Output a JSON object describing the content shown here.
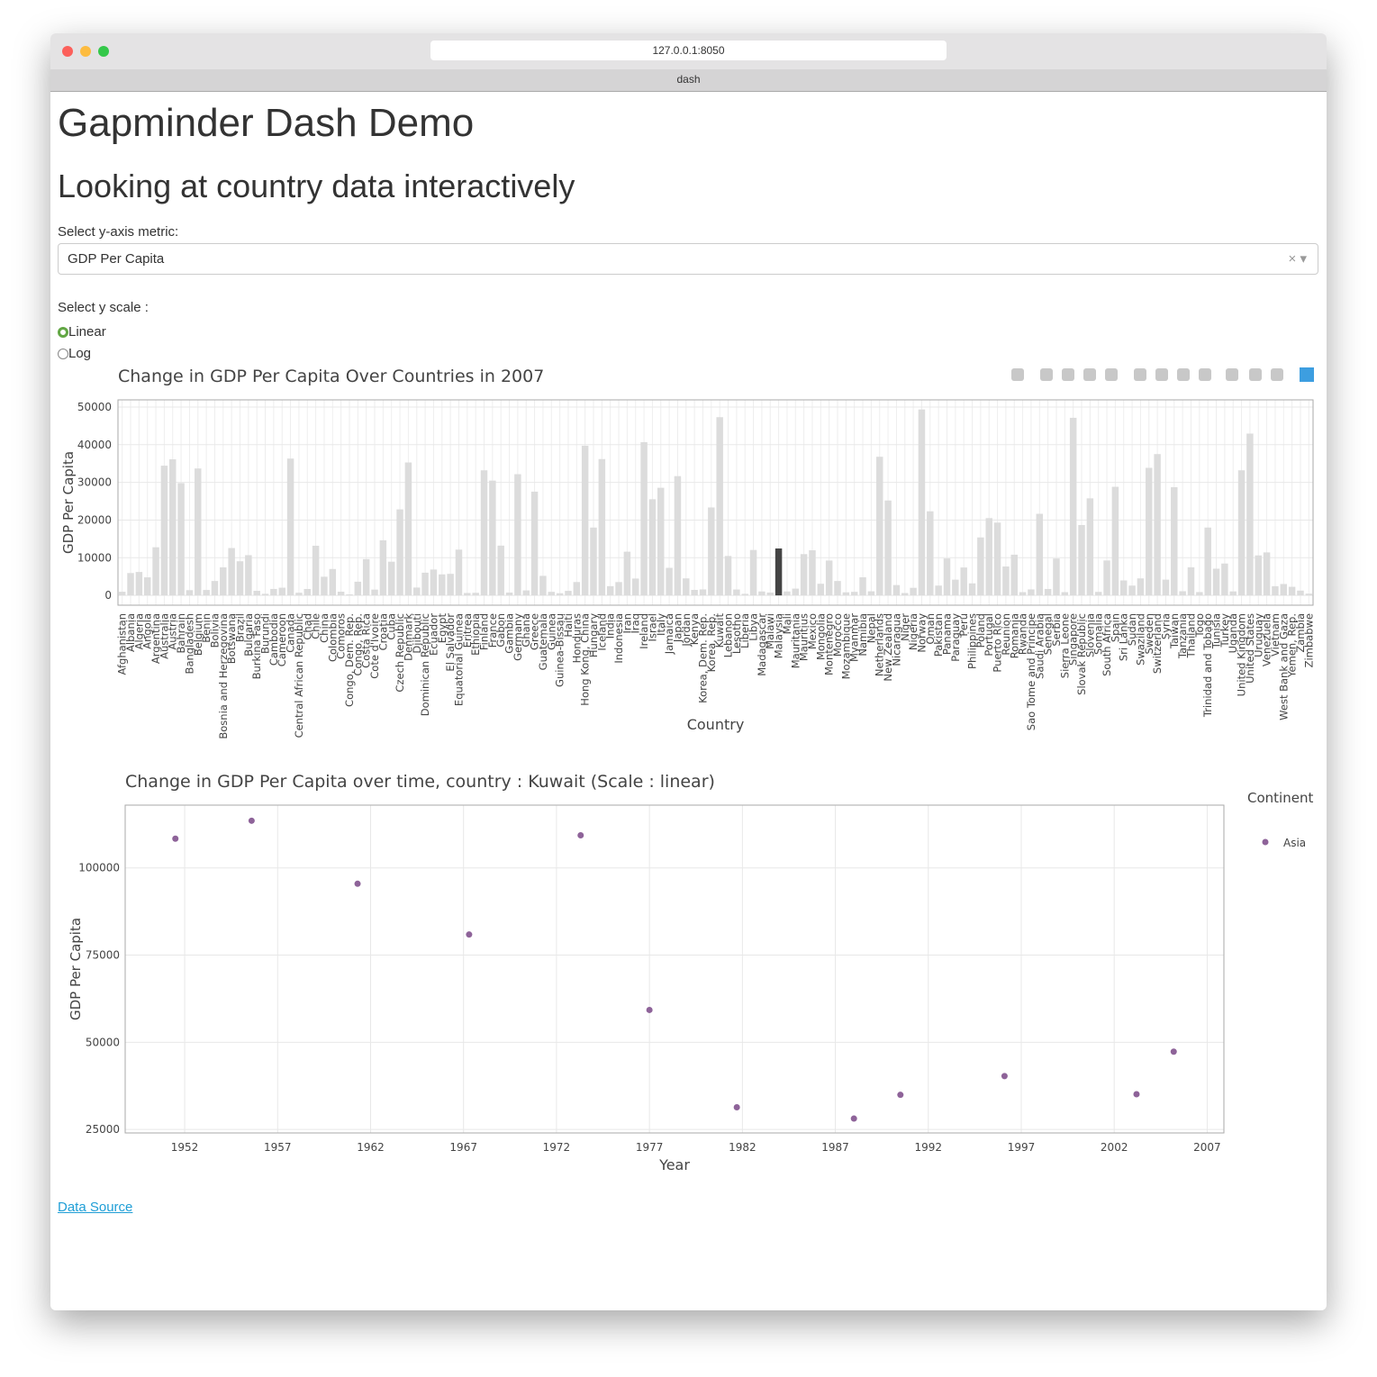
{
  "browser": {
    "url": "127.0.0.1:8050",
    "tab": "dash"
  },
  "page": {
    "title": "Gapminder Dash Demo",
    "subtitle": "Looking at country data interactively",
    "metric_label": "Select y-axis metric:",
    "metric_value": "GDP Per Capita",
    "scale_label": "Select y scale :",
    "scale_options": [
      "Linear",
      "Log"
    ],
    "scale_selected": "Linear",
    "link": "Data Source"
  },
  "chart_data": [
    {
      "type": "bar",
      "title": "Change in GDP Per Capita Over Countries in 2007",
      "x_label": "Country",
      "y_label": "GDP Per Capita",
      "color": "#dcdcdc",
      "highlight_category": "Malaysia",
      "highlight_color": "#444444",
      "grid": true,
      "categories": [
        "Afghanistan",
        "Albania",
        "Algeria",
        "Angola",
        "Argentina",
        "Australia",
        "Austria",
        "Bahrain",
        "Bangladesh",
        "Belgium",
        "Benin",
        "Bolivia",
        "Bosnia and Herzegovina",
        "Botswana",
        "Brazil",
        "Bulgaria",
        "Burkina Faso",
        "Burundi",
        "Cambodia",
        "Cameroon",
        "Canada",
        "Central African Republic",
        "Chad",
        "Chile",
        "China",
        "Colombia",
        "Comoros",
        "Congo, Dem. Rep.",
        "Congo, Rep.",
        "Costa Rica",
        "Cote d'Ivoire",
        "Croatia",
        "Cuba",
        "Czech Republic",
        "Denmark",
        "Djibouti",
        "Dominican Republic",
        "Ecuador",
        "Egypt",
        "El Salvador",
        "Equatorial Guinea",
        "Eritrea",
        "Ethiopia",
        "Finland",
        "France",
        "Gabon",
        "Gambia",
        "Germany",
        "Ghana",
        "Greece",
        "Guatemala",
        "Guinea",
        "Guinea-Bissau",
        "Haiti",
        "Honduras",
        "Hong Kong, China",
        "Hungary",
        "Iceland",
        "India",
        "Indonesia",
        "Iran",
        "Iraq",
        "Ireland",
        "Israel",
        "Italy",
        "Jamaica",
        "Japan",
        "Jordan",
        "Kenya",
        "Korea, Dem. Rep.",
        "Korea, Rep.",
        "Kuwait",
        "Lebanon",
        "Lesotho",
        "Liberia",
        "Libya",
        "Madagascar",
        "Malawi",
        "Malaysia",
        "Mali",
        "Mauritania",
        "Mauritius",
        "Mexico",
        "Mongolia",
        "Montenegro",
        "Morocco",
        "Mozambique",
        "Myanmar",
        "Namibia",
        "Nepal",
        "Netherlands",
        "New Zealand",
        "Nicaragua",
        "Niger",
        "Nigeria",
        "Norway",
        "Oman",
        "Pakistan",
        "Panama",
        "Paraguay",
        "Peru",
        "Philippines",
        "Poland",
        "Portugal",
        "Puerto Rico",
        "Reunion",
        "Romania",
        "Rwanda",
        "Sao Tome and Principe",
        "Saudi Arabia",
        "Senegal",
        "Serbia",
        "Sierra Leone",
        "Singapore",
        "Slovak Republic",
        "Slovenia",
        "Somalia",
        "South Africa",
        "Spain",
        "Sri Lanka",
        "Sudan",
        "Swaziland",
        "Sweden",
        "Switzerland",
        "Syria",
        "Taiwan",
        "Tanzania",
        "Thailand",
        "Togo",
        "Trinidad and Tobago",
        "Tunisia",
        "Turkey",
        "Uganda",
        "United Kingdom",
        "United States",
        "Uruguay",
        "Venezuela",
        "Vietnam",
        "West Bank and Gaza",
        "Yemen, Rep.",
        "Zambia",
        "Zimbabwe"
      ],
      "values": [
        975,
        5937,
        6223,
        4797,
        12779,
        34435,
        36126,
        29796,
        1391,
        33693,
        1441,
        3822,
        7446,
        12570,
        9066,
        10681,
        1217,
        430,
        1714,
        2042,
        36319,
        706,
        1704,
        13172,
        4959,
        7007,
        986,
        278,
        3633,
        9645,
        1545,
        14619,
        8948,
        22833,
        35278,
        2082,
        6025,
        6873,
        5581,
        5728,
        12154,
        641,
        691,
        33207,
        30470,
        13206,
        753,
        32170,
        1328,
        27538,
        5186,
        943,
        579,
        1202,
        3548,
        39725,
        18009,
        36181,
        2452,
        3541,
        11606,
        4471,
        40676,
        25523,
        28570,
        7321,
        31656,
        4519,
        1463,
        1593,
        23348,
        47307,
        10461,
        1569,
        415,
        12057,
        1045,
        759,
        12452,
        1043,
        1803,
        10957,
        11978,
        3096,
        9254,
        3820,
        824,
        944,
        4811,
        1091,
        36798,
        25185,
        2749,
        620,
        2014,
        49357,
        22316,
        2606,
        9809,
        4173,
        7409,
        3190,
        15390,
        20510,
        19329,
        7670,
        10808,
        863,
        1598,
        21655,
        1712,
        9787,
        863,
        47143,
        18678,
        25768,
        926,
        9270,
        28821,
        3970,
        2602,
        4513,
        33860,
        37506,
        4185,
        28718,
        1107,
        7458,
        883,
        18009,
        7093,
        8458,
        1056,
        33203,
        42952,
        10611,
        11416,
        2442,
        3025,
        2281,
        1271,
        470
      ],
      "ylim": [
        -2600,
        51900
      ],
      "yticks": [
        0,
        10000,
        20000,
        30000,
        40000,
        50000
      ]
    },
    {
      "type": "scatter",
      "title": "Change in GDP Per Capita over time, country : Kuwait (Scale : linear)",
      "x_label": "Year",
      "y_label": "GDP Per Capita",
      "legend_title": "Continent",
      "legend": "right",
      "grid": true,
      "series": [
        {
          "name": "Asia",
          "color": "#8e6399",
          "x": [
            1951.5,
            1955.6,
            1961.3,
            1967.3,
            1973.3,
            1977.0,
            1981.7,
            1988.0,
            1990.5,
            1996.1,
            2003.2,
            2005.2
          ],
          "values": [
            108382,
            113523,
            95458,
            80895,
            109348,
            59265,
            31354,
            28118,
            34933,
            40301,
            35110,
            47307
          ]
        }
      ],
      "xlim": [
        1948.8,
        2007.9
      ],
      "xticks": [
        1952,
        1957,
        1962,
        1967,
        1972,
        1977,
        1982,
        1987,
        1992,
        1997,
        2002,
        2007
      ],
      "ylim": [
        24000,
        118000
      ],
      "yticks": [
        25000,
        50000,
        75000,
        100000
      ]
    }
  ]
}
